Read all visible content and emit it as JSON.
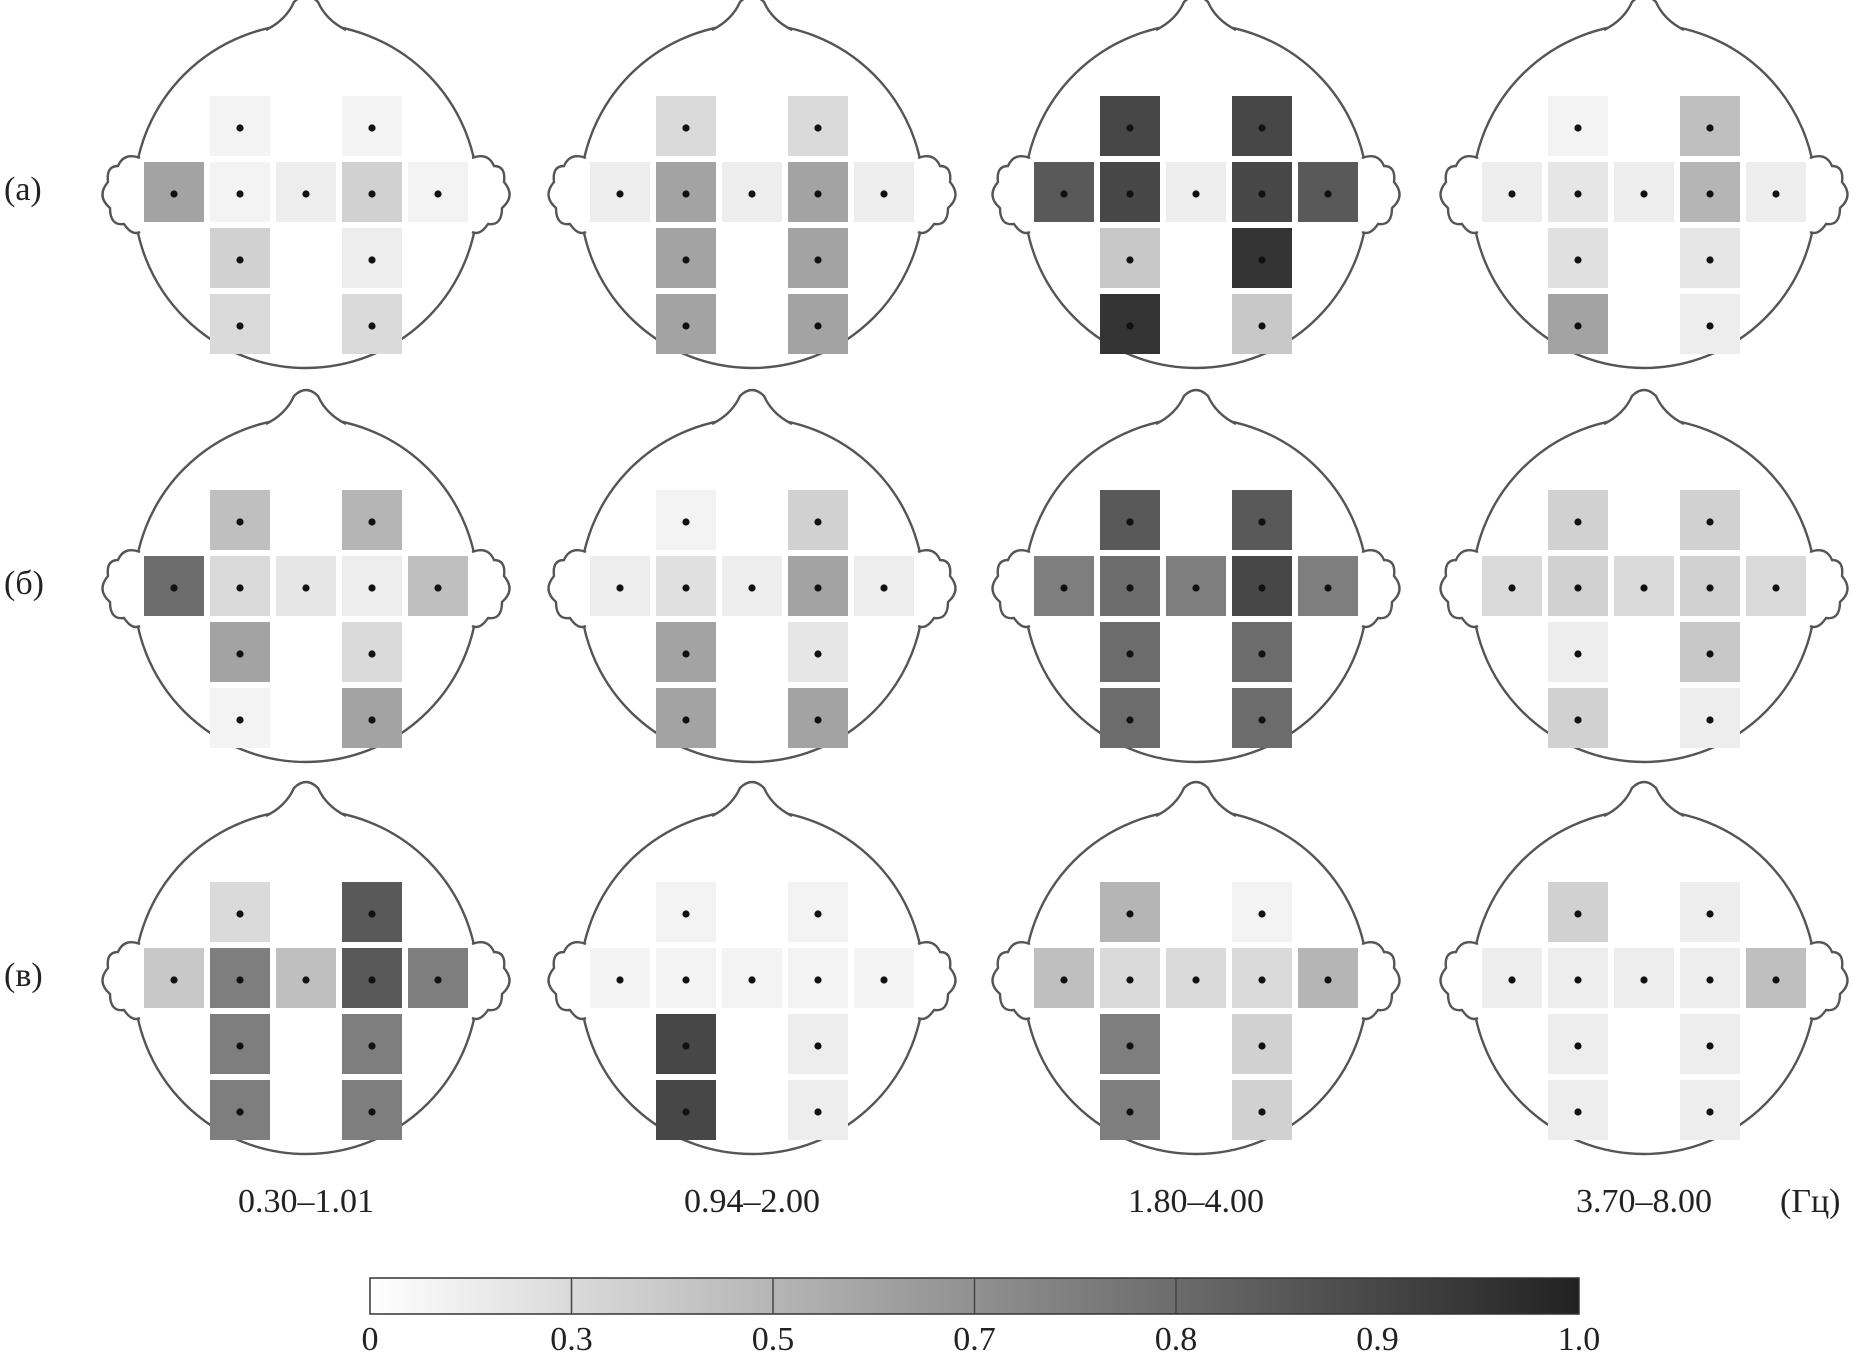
{
  "chart_data": {
    "type": "heatmap",
    "column_labels": [
      "0.30–1.01",
      "0.94–2.00",
      "1.80–4.00",
      "3.70–8.00"
    ],
    "unit_label": "(Гц)",
    "rows": [
      {
        "label": "(а)",
        "maps": [
          [
            0.1,
            0.1,
            0.6,
            0.1,
            0.15,
            0.35,
            0.1,
            0.35,
            0.15,
            0.3,
            0.3
          ],
          [
            0.3,
            0.3,
            0.15,
            0.6,
            0.15,
            0.6,
            0.15,
            0.6,
            0.6,
            0.6,
            0.6
          ],
          [
            0.9,
            0.9,
            0.85,
            0.9,
            0.15,
            0.9,
            0.85,
            0.4,
            0.95,
            0.95,
            0.4
          ],
          [
            0.1,
            0.45,
            0.15,
            0.2,
            0.15,
            0.5,
            0.15,
            0.25,
            0.2,
            0.6,
            0.15
          ]
        ]
      },
      {
        "label": "(б)",
        "maps": [
          [
            0.45,
            0.5,
            0.8,
            0.3,
            0.2,
            0.15,
            0.45,
            0.6,
            0.3,
            0.1,
            0.6
          ],
          [
            0.1,
            0.35,
            0.15,
            0.25,
            0.15,
            0.6,
            0.15,
            0.6,
            0.2,
            0.6,
            0.6
          ],
          [
            0.85,
            0.85,
            0.75,
            0.8,
            0.75,
            0.9,
            0.75,
            0.8,
            0.8,
            0.8,
            0.8
          ],
          [
            0.35,
            0.35,
            0.3,
            0.35,
            0.3,
            0.35,
            0.3,
            0.15,
            0.4,
            0.35,
            0.15
          ]
        ]
      },
      {
        "label": "(в)",
        "maps": [
          [
            0.3,
            0.85,
            0.4,
            0.75,
            0.45,
            0.85,
            0.75,
            0.75,
            0.75,
            0.75,
            0.75
          ],
          [
            0.1,
            0.1,
            0.1,
            0.1,
            0.1,
            0.1,
            0.1,
            0.9,
            0.15,
            0.9,
            0.15
          ],
          [
            0.5,
            0.1,
            0.45,
            0.3,
            0.3,
            0.3,
            0.5,
            0.75,
            0.35,
            0.75,
            0.35
          ],
          [
            0.35,
            0.15,
            0.15,
            0.15,
            0.15,
            0.15,
            0.45,
            0.15,
            0.15,
            0.15,
            0.15
          ]
        ]
      }
    ],
    "colorbar": {
      "ticks": [
        0,
        0.3,
        0.5,
        0.7,
        0.8,
        0.9,
        {
          "value": 1,
          "label": "1.0"
        }
      ],
      "colors": [
        "#ffffff",
        "#222222"
      ]
    }
  }
}
